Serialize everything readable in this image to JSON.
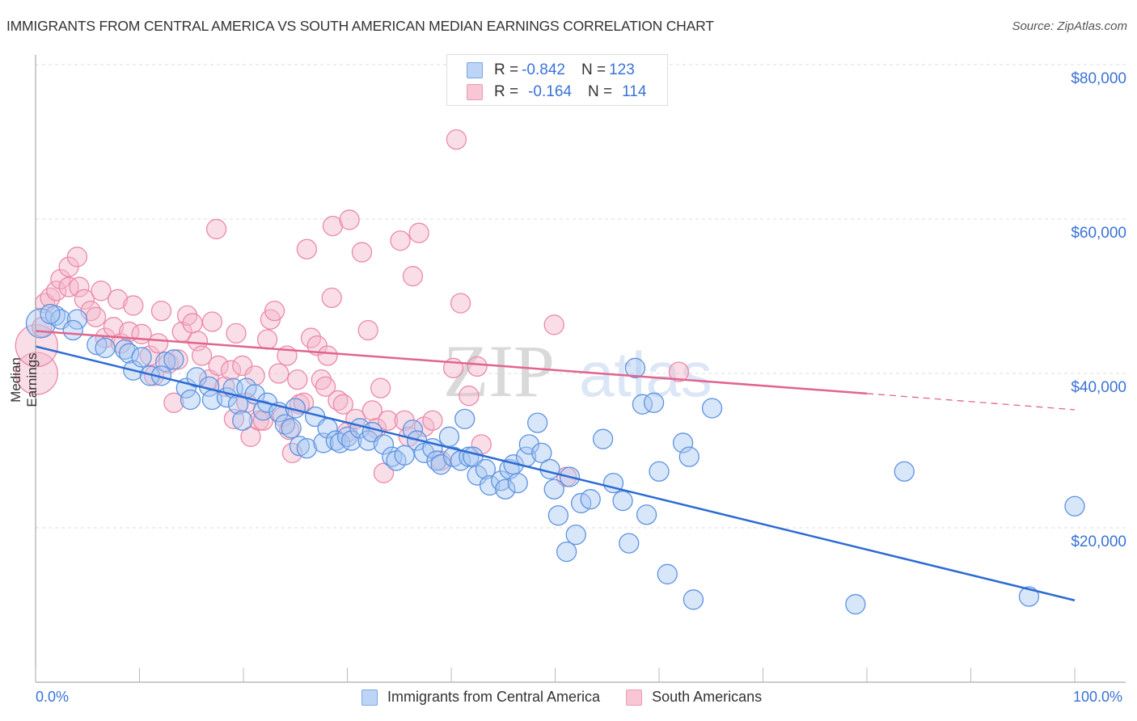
{
  "title": "IMMIGRANTS FROM CENTRAL AMERICA VS SOUTH AMERICAN MEDIAN EARNINGS CORRELATION CHART",
  "source": "Source: ZipAtlas.com",
  "watermark": {
    "zip": "ZIP",
    "atlas": "atlas"
  },
  "legend": {
    "rows": [
      {
        "r_label": "R = ",
        "r_value": "-0.842",
        "n_label": "N = ",
        "n_value": "123"
      },
      {
        "r_label": "R = ",
        "r_value": "-0.164",
        "n_label": "N = ",
        "n_value": "114"
      }
    ]
  },
  "colors": {
    "blue": "#3a72d6",
    "blue_fill": "#a9c8f2",
    "pink": "#e8668f",
    "pink_fill": "#f5b6c9",
    "axis_label": "#3a72d6"
  },
  "chart_data": {
    "type": "scatter",
    "title": "IMMIGRANTS FROM CENTRAL AMERICA VS SOUTH AMERICAN MEDIAN EARNINGS CORRELATION CHART",
    "xlabel": "",
    "ylabel": "Median Earnings",
    "xlim": [
      0,
      100
    ],
    "ylim": [
      0,
      83000
    ],
    "x_tick_labels": [
      "0.0%",
      "100.0%"
    ],
    "y_ticks": [
      20000,
      40000,
      60000,
      80000
    ],
    "y_tick_labels": [
      "$20,000",
      "$40,000",
      "$60,000",
      "$80,000"
    ],
    "grid": true,
    "legend_position": "top-center",
    "series": [
      {
        "name": "Immigrants from Central America",
        "color": "#3a72d6",
        "R": -0.842,
        "N": 123,
        "trend": {
          "x": [
            0,
            100
          ],
          "y": [
            43500,
            10600
          ]
        },
        "points": [
          [
            0.5,
            46500,
            1
          ],
          [
            1.9,
            47500
          ],
          [
            2.4,
            47000
          ],
          [
            4.0,
            47000
          ],
          [
            1.4,
            47700
          ],
          [
            3.6,
            45600
          ],
          [
            5.9,
            43700
          ],
          [
            6.7,
            43300
          ],
          [
            8.6,
            43100
          ],
          [
            9.0,
            42600
          ],
          [
            9.4,
            40400
          ],
          [
            10.2,
            42100
          ],
          [
            11.0,
            39700
          ],
          [
            12.5,
            41500
          ],
          [
            12.1,
            39700
          ],
          [
            13.3,
            41800
          ],
          [
            14.5,
            38100
          ],
          [
            14.9,
            36600
          ],
          [
            15.5,
            39500
          ],
          [
            16.7,
            38300
          ],
          [
            17.0,
            36600
          ],
          [
            18.4,
            36900
          ],
          [
            19.0,
            38100
          ],
          [
            19.5,
            36000
          ],
          [
            20.3,
            38100
          ],
          [
            21.1,
            37300
          ],
          [
            21.9,
            35200
          ],
          [
            19.9,
            33900
          ],
          [
            22.3,
            36200
          ],
          [
            23.4,
            35000
          ],
          [
            24.0,
            33400
          ],
          [
            24.6,
            32900
          ],
          [
            25.0,
            35500
          ],
          [
            25.4,
            30600
          ],
          [
            26.1,
            30300
          ],
          [
            26.9,
            34400
          ],
          [
            27.7,
            31000
          ],
          [
            28.1,
            32900
          ],
          [
            28.9,
            31300
          ],
          [
            29.3,
            31000
          ],
          [
            30.0,
            31800
          ],
          [
            30.4,
            31300
          ],
          [
            31.2,
            32900
          ],
          [
            32.0,
            31300
          ],
          [
            32.4,
            32400
          ],
          [
            33.5,
            30800
          ],
          [
            34.3,
            29200
          ],
          [
            34.7,
            28700
          ],
          [
            35.5,
            29400
          ],
          [
            36.3,
            32700
          ],
          [
            36.7,
            31300
          ],
          [
            37.4,
            29700
          ],
          [
            38.2,
            30300
          ],
          [
            38.6,
            28700
          ],
          [
            39.0,
            28200
          ],
          [
            39.8,
            31800
          ],
          [
            40.2,
            29200
          ],
          [
            40.9,
            28700
          ],
          [
            41.3,
            34100
          ],
          [
            41.7,
            29200
          ],
          [
            42.1,
            29200
          ],
          [
            42.5,
            26800
          ],
          [
            43.3,
            27600
          ],
          [
            43.7,
            25500
          ],
          [
            44.8,
            26100
          ],
          [
            45.2,
            25000
          ],
          [
            45.6,
            27600
          ],
          [
            46.0,
            28200
          ],
          [
            46.4,
            25800
          ],
          [
            47.2,
            29200
          ],
          [
            47.5,
            30800
          ],
          [
            48.3,
            33600
          ],
          [
            48.7,
            29700
          ],
          [
            49.5,
            27600
          ],
          [
            49.9,
            25000
          ],
          [
            50.3,
            21600
          ],
          [
            51.1,
            16900
          ],
          [
            51.4,
            26600
          ],
          [
            52.0,
            19100
          ],
          [
            52.5,
            23200
          ],
          [
            53.4,
            23700
          ],
          [
            54.6,
            31500
          ],
          [
            55.6,
            25800
          ],
          [
            56.5,
            23500
          ],
          [
            57.1,
            18000
          ],
          [
            57.7,
            40700
          ],
          [
            58.4,
            36000
          ],
          [
            58.8,
            21700
          ],
          [
            59.5,
            36200
          ],
          [
            60.0,
            27300
          ],
          [
            60.8,
            14000
          ],
          [
            62.3,
            31000
          ],
          [
            62.9,
            29200
          ],
          [
            63.3,
            10700
          ],
          [
            65.1,
            35500
          ],
          [
            78.9,
            10100
          ],
          [
            83.6,
            27300
          ],
          [
            95.6,
            11100
          ],
          [
            100.0,
            22800
          ]
        ]
      },
      {
        "name": "South Americans",
        "color": "#e8668f",
        "R": -0.164,
        "N": 114,
        "trend": {
          "x": [
            0,
            80
          ],
          "y": [
            45500,
            37400
          ],
          "dashed_to": {
            "x": 100,
            "y": 35300
          }
        },
        "points": [
          [
            0.1,
            40000,
            2
          ],
          [
            0.1,
            43600,
            2
          ],
          [
            0.6,
            46000
          ],
          [
            0.9,
            49100
          ],
          [
            1.4,
            49800
          ],
          [
            2.0,
            50700
          ],
          [
            2.4,
            52200
          ],
          [
            3.2,
            53800
          ],
          [
            4.0,
            55100
          ],
          [
            3.2,
            51200
          ],
          [
            4.2,
            51200
          ],
          [
            4.7,
            49600
          ],
          [
            5.3,
            48100
          ],
          [
            5.8,
            47300
          ],
          [
            6.3,
            50700
          ],
          [
            6.7,
            44600
          ],
          [
            7.5,
            46000
          ],
          [
            8.2,
            43900
          ],
          [
            7.9,
            49600
          ],
          [
            9.0,
            45400
          ],
          [
            9.4,
            48800
          ],
          [
            10.2,
            45100
          ],
          [
            11.0,
            42300
          ],
          [
            11.4,
            39700
          ],
          [
            11.8,
            43900
          ],
          [
            12.1,
            48100
          ],
          [
            12.8,
            41300
          ],
          [
            13.3,
            36200
          ],
          [
            13.7,
            41800
          ],
          [
            14.1,
            45400
          ],
          [
            14.6,
            47500
          ],
          [
            15.1,
            46500
          ],
          [
            15.6,
            44200
          ],
          [
            16.0,
            42300
          ],
          [
            16.7,
            39200
          ],
          [
            17.0,
            46700
          ],
          [
            17.4,
            58700
          ],
          [
            17.6,
            41000
          ],
          [
            18.2,
            38300
          ],
          [
            18.8,
            40400
          ],
          [
            19.1,
            34100
          ],
          [
            19.3,
            45200
          ],
          [
            19.9,
            41000
          ],
          [
            20.3,
            36200
          ],
          [
            20.7,
            31800
          ],
          [
            21.1,
            39700
          ],
          [
            21.5,
            33900
          ],
          [
            21.9,
            33900
          ],
          [
            22.3,
            44400
          ],
          [
            22.6,
            47000
          ],
          [
            23.0,
            48100
          ],
          [
            23.4,
            40000
          ],
          [
            23.8,
            34400
          ],
          [
            24.2,
            42300
          ],
          [
            24.4,
            32700
          ],
          [
            24.7,
            29700
          ],
          [
            25.2,
            39200
          ],
          [
            25.4,
            36000
          ],
          [
            25.8,
            36200
          ],
          [
            26.1,
            56100
          ],
          [
            26.5,
            44600
          ],
          [
            27.1,
            43600
          ],
          [
            27.5,
            39200
          ],
          [
            27.9,
            38300
          ],
          [
            28.1,
            42300
          ],
          [
            28.5,
            49800
          ],
          [
            28.6,
            59100
          ],
          [
            29.1,
            36500
          ],
          [
            29.6,
            36000
          ],
          [
            30.0,
            32400
          ],
          [
            30.2,
            59900
          ],
          [
            30.8,
            34100
          ],
          [
            31.4,
            55700
          ],
          [
            32.0,
            45600
          ],
          [
            32.4,
            35200
          ],
          [
            32.8,
            32900
          ],
          [
            33.2,
            38100
          ],
          [
            33.5,
            27100
          ],
          [
            33.9,
            33900
          ],
          [
            35.1,
            57200
          ],
          [
            35.5,
            33900
          ],
          [
            35.9,
            31800
          ],
          [
            36.3,
            52600
          ],
          [
            36.9,
            58200
          ],
          [
            37.4,
            33100
          ],
          [
            38.2,
            33900
          ],
          [
            39.0,
            28700
          ],
          [
            40.2,
            40700
          ],
          [
            40.5,
            70300
          ],
          [
            40.9,
            49100
          ],
          [
            41.7,
            37100
          ],
          [
            42.5,
            40900
          ],
          [
            42.9,
            30800
          ],
          [
            49.9,
            46300
          ],
          [
            51.1,
            26600
          ],
          [
            61.9,
            40200
          ]
        ]
      }
    ]
  }
}
